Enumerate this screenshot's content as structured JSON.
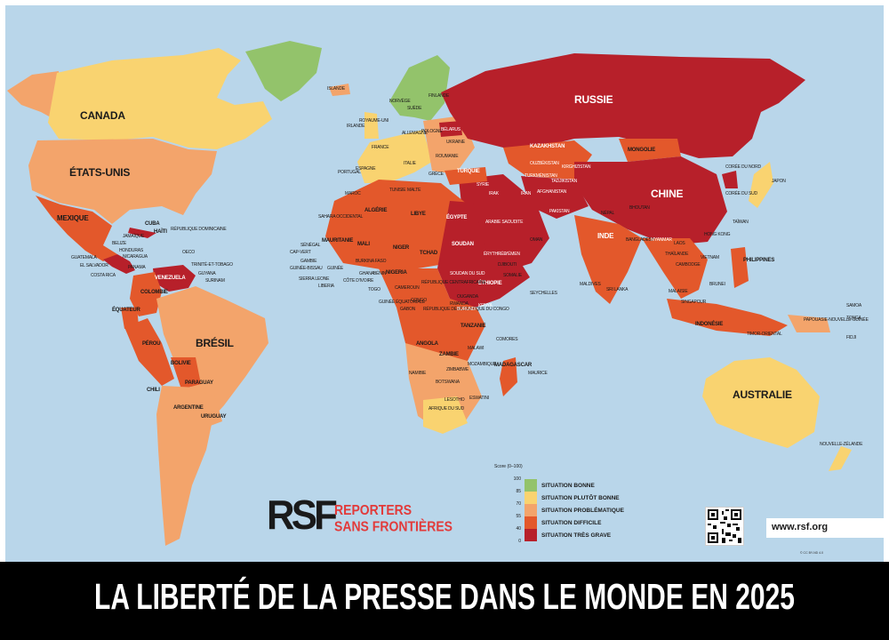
{
  "title": "LA LIBERTÉ DE LA PRESSE DANS LE MONDE EN 2025",
  "organization": {
    "logo_mark": "RSF",
    "name_line1": "REPORTERS",
    "name_line2": "SANS FRONTIÈRES",
    "website": "www.rsf.org",
    "license": "© CC BY-ND 4.0"
  },
  "legend": {
    "title": "Score (0–100)",
    "scale": [
      "100",
      "85",
      "70",
      "55",
      "40",
      "0"
    ],
    "categories": [
      {
        "label": "SITUATION BONNE",
        "color": "#93c36b"
      },
      {
        "label": "SITUATION PLUTÔT BONNE",
        "color": "#f9d370"
      },
      {
        "label": "SITUATION PROBLÉMATIQUE",
        "color": "#f3a46b"
      },
      {
        "label": "SITUATION DIFFICILE",
        "color": "#e3582b"
      },
      {
        "label": "SITUATION TRÈS GRAVE",
        "color": "#b7202a"
      }
    ]
  },
  "colors": {
    "ocean": "#b9d6ea",
    "bonne": "#93c36b",
    "plutot_bonne": "#f9d370",
    "problematique": "#f3a46b",
    "difficile": "#e3582b",
    "tres_grave": "#b7202a"
  },
  "labels": {
    "canada": "CANADA",
    "etats_unis": "ÉTATS-UNIS",
    "mexique": "MEXIQUE",
    "cuba": "CUBA",
    "haiti": "HAÏTI",
    "rep_dominicaine": "RÉPUBLIQUE DOMINICAINE",
    "jamaique": "JAMAÏQUE",
    "belize": "BELIZE",
    "honduras": "HONDURAS",
    "nicaragua": "NICARAGUA",
    "guatemala": "GUATEMALA",
    "el_salvador": "EL SALVADOR",
    "panama": "PANAMA",
    "costa_rica": "COSTA RICA",
    "oeco": "OECO",
    "trinite": "TRINITÉ-ET-TOBAGO",
    "guyana": "GUYANA",
    "suriname": "SURINAM",
    "venezuela": "VENEZUELA",
    "colombie": "COLOMBIE",
    "equateur": "ÉQUATEUR",
    "perou": "PÉROU",
    "bresil": "BRÉSIL",
    "bolivie": "BOLIVIE",
    "paraguay": "PARAGUAY",
    "chili": "CHILI",
    "argentine": "ARGENTINE",
    "uruguay": "URUGUAY",
    "islande": "ISLANDE",
    "norvege": "NORVÈGE",
    "suede": "SUÈDE",
    "finlande": "FINLANDE",
    "royaume_uni": "ROYAUME-UNI",
    "irlande": "IRLANDE",
    "france": "FRANCE",
    "espagne": "ESPAGNE",
    "portugal": "PORTUGAL",
    "allemagne": "ALLEMAGNE",
    "pologne": "POLOGNE",
    "ukraine": "UKRAINE",
    "belarus": "BÉLARUS",
    "italie": "ITALIE",
    "grece": "GRÈCE",
    "turquie": "TURQUIE",
    "roumanie": "ROUMANIE",
    "russie": "RUSSIE",
    "kazakhstan": "KAZAKHSTAN",
    "mongolie": "MONGOLIE",
    "chine": "CHINE",
    "coree_nord": "CORÉE DU NORD",
    "coree_sud": "CORÉE DU SUD",
    "japon": "JAPON",
    "taiwan": "TAÏWAN",
    "hong_kong": "HONG KONG",
    "ouzbekistan": "OUZBÉKISTAN",
    "turkmenistan": "TURKMÉNISTAN",
    "kirghizistan": "KIRGHIZISTAN",
    "tadjikistan": "TADJIKISTAN",
    "afghanistan": "AFGHANISTAN",
    "pakistan": "PAKISTAN",
    "inde": "INDE",
    "nepal": "NÉPAL",
    "bhoutan": "BHOUTAN",
    "bangladesh": "BANGLADESH",
    "myanmar": "MYANMAR",
    "thailande": "THAÏLANDE",
    "laos": "LAOS",
    "cambodge": "CAMBODGE",
    "vietnam": "VIETNAM",
    "philippines": "PHILIPPINES",
    "malaisie": "MALAISIE",
    "brunei": "BRUNEI",
    "singapour": "SINGAPOUR",
    "indonesie": "INDONÉSIE",
    "timor": "TIMOR-ORIENTAL",
    "papouasie": "PAPOUASIE-NOUVELLE-GUINÉE",
    "samoa": "SAMOA",
    "tonga": "TONGA",
    "fidji": "FIDJI",
    "australie": "AUSTRALIE",
    "nouvelle_zelande": "NOUVELLE-ZÉLANDE",
    "sri_lanka": "SRI LANKA",
    "maldives": "MALDIVES",
    "iran": "IRAN",
    "irak": "IRAK",
    "syrie": "SYRIE",
    "arabie_saoudite": "ARABIE SAOUDITE",
    "yemen": "YÉMEN",
    "oman": "OMAN",
    "egypte": "ÉGYPTE",
    "libye": "LIBYE",
    "algerie": "ALGÉRIE",
    "maroc": "MAROC",
    "tunisie": "TUNISIE",
    "malte": "MALTE",
    "sahara": "SAHARA OCCIDENTAL",
    "mauritanie": "MAURITANIE",
    "mali": "MALI",
    "niger": "NIGER",
    "tchad": "TCHAD",
    "soudan": "SOUDAN",
    "erythree": "ÉRYTHRÉE",
    "djibouti": "DJIBOUTI",
    "ethiopie": "ÉTHIOPIE",
    "somalie": "SOMALIE",
    "soudan_sud": "SOUDAN DU SUD",
    "senegal": "SÉNÉGAL",
    "gambie": "GAMBIE",
    "cap_vert": "CAP-VERT",
    "guinee_bissau": "GUINÉE-BISSAU",
    "guinee": "GUINÉE",
    "sierra_leone": "SIERRA LEONE",
    "liberia": "LIBERIA",
    "cote_ivoire": "CÔTE D'IVOIRE",
    "burkina": "BURKINA FASO",
    "ghana": "GHANA",
    "togo": "TOGO",
    "benin": "BÉNIN",
    "nigeria": "NIGERIA",
    "cameroun": "CAMEROUN",
    "rca": "RÉPUBLIQUE CENTRAFRICAINE",
    "guinee_eq": "GUINÉE ÉQUATORIALE",
    "gabon": "GABON",
    "congo": "CONGO",
    "rdc": "RÉPUBLIQUE DÉMOCRATIQUE DU CONGO",
    "ouganda": "OUGANDA",
    "kenya": "KENYA",
    "rwanda": "RWANDA",
    "burundi": "BURUNDI",
    "tanzanie": "TANZANIE",
    "angola": "ANGOLA",
    "zambie": "ZAMBIE",
    "malawi": "MALAWI",
    "mozambique": "MOZAMBIQUE",
    "zimbabwe": "ZIMBABWE",
    "namibie": "NAMIBIE",
    "botswana": "BOTSWANA",
    "afrique_sud": "AFRIQUE DU SUD",
    "lesotho": "LESOTHO",
    "eswatini": "ESWATINI",
    "madagascar": "MADAGASCAR",
    "comores": "COMORES",
    "maurice": "MAURICE",
    "seychelles": "SEYCHELLES"
  }
}
